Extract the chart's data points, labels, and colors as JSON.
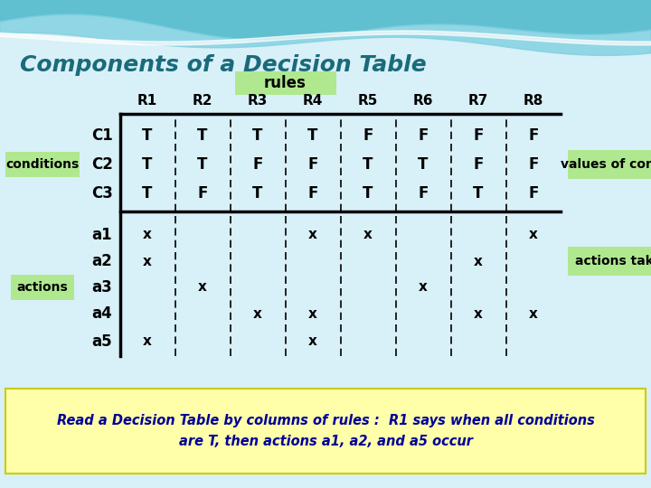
{
  "title": "Components of a Decision Table",
  "subtitle": "rules",
  "rules": [
    "R1",
    "R2",
    "R3",
    "R4",
    "R5",
    "R6",
    "R7",
    "R8"
  ],
  "conditions_label": "conditions",
  "conditions": [
    "C1",
    "C2",
    "C3"
  ],
  "condition_values": [
    [
      "T",
      "T",
      "T",
      "T",
      "F",
      "F",
      "F",
      "F"
    ],
    [
      "T",
      "T",
      "F",
      "F",
      "T",
      "T",
      "F",
      "F"
    ],
    [
      "T",
      "F",
      "T",
      "F",
      "T",
      "F",
      "T",
      "F"
    ]
  ],
  "actions_label": "actions",
  "actions": [
    "a1",
    "a2",
    "a3",
    "a4",
    "a5"
  ],
  "action_values": [
    [
      "x",
      "",
      "",
      "x",
      "x",
      "",
      "",
      "x"
    ],
    [
      "x",
      "",
      "",
      "",
      "",
      "",
      "x",
      ""
    ],
    [
      "",
      "x",
      "",
      "",
      "",
      "x",
      "",
      ""
    ],
    [
      "",
      "",
      "x",
      "x",
      "",
      "",
      "x",
      "x"
    ],
    [
      "x",
      "",
      "",
      "x",
      "",
      "",
      "",
      ""
    ]
  ],
  "values_of_conditions_label": "values of conditions",
  "actions_taken_label": "actions taken",
  "footer_text": "Read a Decision Table by columns of rules :  R1 says when all conditions\nare T, then actions a1, a2, and a5 occur",
  "title_color": "#1a6b7a",
  "subtitle_bg": "#b0e890",
  "conditions_label_bg": "#b0e890",
  "actions_label_bg": "#b0e890",
  "values_label_bg": "#b0e890",
  "actions_taken_bg": "#b0e890",
  "footer_bg": "#ffffaa",
  "footer_text_color": "#000099",
  "bg_light": "#d8f0f8",
  "wave_color1": "#60c0d0",
  "wave_color2": "#80d0e0",
  "wave_white": "#ffffff"
}
